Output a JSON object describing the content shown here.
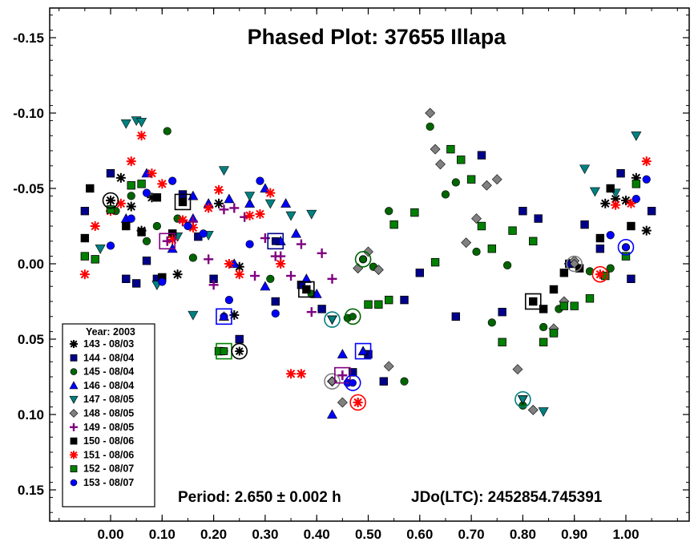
{
  "chart_data": {
    "type": "scatter",
    "title": "Phased Plot: 37655 Illapa",
    "xlabel": "",
    "ylabel": "",
    "xlim": [
      -0.12,
      1.12
    ],
    "ylim": [
      -0.17,
      0.17
    ],
    "y_inverted": true,
    "x_ticks": [
      "0.00",
      "0.10",
      "0.20",
      "0.30",
      "0.40",
      "0.50",
      "0.60",
      "0.70",
      "0.80",
      "0.90",
      "1.00"
    ],
    "x_tick_values": [
      0,
      0.1,
      0.2,
      0.3,
      0.4,
      0.5,
      0.6,
      0.7,
      0.8,
      0.9,
      1.0
    ],
    "y_ticks": [
      "-0.15",
      "-0.10",
      "-0.05",
      "0.00",
      "0.05",
      "0.10",
      "0.15"
    ],
    "y_tick_values": [
      -0.15,
      -0.1,
      -0.05,
      0.0,
      0.05,
      0.1,
      0.15
    ],
    "grid": false,
    "legend_position": "bottom-left",
    "legend_title": "Year: 2003",
    "footer_left": "Period: 2.650 ± 0.002 h",
    "footer_right": "JDo(LTC): 2452854.745391",
    "series": [
      {
        "name": "143 - 08/03",
        "marker": "asterisk",
        "color": "#000000",
        "x": [
          0.0,
          0.02,
          0.04,
          0.06,
          0.08,
          0.13,
          0.21,
          0.24,
          0.25,
          0.89,
          0.96,
          0.98,
          1.0,
          1.02,
          1.04
        ],
        "y": [
          -0.042,
          -0.057,
          -0.038,
          -0.022,
          -0.044,
          0.007,
          -0.04,
          0.034,
          0.002,
          0.0,
          -0.04,
          -0.043,
          -0.042,
          -0.057,
          -0.022
        ]
      },
      {
        "name": "144 - 08/04",
        "marker": "square",
        "color": "#00008B",
        "x": [
          -0.05,
          0.0,
          0.03,
          0.05,
          0.07,
          0.09,
          0.12,
          0.14,
          0.17,
          0.2,
          0.25,
          0.32,
          0.37,
          0.41,
          0.47,
          0.5,
          0.53,
          0.57,
          0.6,
          0.67,
          0.72,
          0.76,
          0.8,
          0.83,
          0.86,
          0.89,
          0.92,
          0.95,
          0.99,
          1.01,
          1.05
        ],
        "y": [
          -0.035,
          -0.06,
          0.01,
          0.013,
          -0.002,
          0.01,
          -0.02,
          -0.046,
          -0.018,
          0.01,
          0.05,
          0.025,
          0.014,
          0.03,
          0.072,
          0.06,
          0.078,
          0.024,
          0.006,
          0.035,
          -0.072,
          0.032,
          -0.035,
          -0.03,
          0.045,
          0.0,
          -0.026,
          -0.01,
          -0.06,
          0.01,
          -0.035
        ]
      },
      {
        "name": "145 - 08/04",
        "marker": "circle",
        "color": "#006400",
        "x": [
          0.01,
          0.04,
          0.07,
          0.09,
          0.11,
          0.13,
          0.16,
          0.22,
          0.31,
          0.39,
          0.46,
          0.49,
          0.51,
          0.54,
          0.57,
          0.62,
          0.65,
          0.67,
          0.71,
          0.74,
          0.77,
          0.8,
          0.84,
          0.87,
          0.93,
          0.97
        ],
        "y": [
          -0.035,
          -0.045,
          -0.015,
          -0.025,
          -0.088,
          -0.03,
          -0.004,
          0.058,
          0.01,
          0.02,
          0.036,
          -0.003,
          0.002,
          -0.035,
          0.078,
          -0.091,
          -0.046,
          -0.054,
          -0.008,
          0.039,
          0.001,
          0.094,
          0.042,
          0.03,
          0.005,
          0.003
        ]
      },
      {
        "name": "146 - 08/04",
        "marker": "triangle",
        "color": "#0000FF",
        "x": [
          0.03,
          0.07,
          0.12,
          0.16,
          0.19,
          0.22,
          0.24,
          0.27,
          0.3,
          0.34,
          0.38,
          0.4,
          0.43,
          0.45,
          0.49,
          0.16,
          0.23,
          0.3,
          0.33,
          0.36
        ],
        "y": [
          -0.03,
          -0.06,
          -0.01,
          -0.03,
          -0.04,
          0.035,
          0.0,
          -0.04,
          0.015,
          -0.04,
          0.01,
          0.02,
          0.1,
          0.06,
          0.058,
          -0.045,
          -0.043,
          -0.05,
          -0.015,
          -0.02
        ]
      },
      {
        "name": "147 - 08/05",
        "marker": "triangle-down",
        "color": "#008080",
        "x": [
          -0.02,
          0.03,
          0.05,
          0.06,
          0.09,
          0.13,
          0.16,
          0.19,
          0.22,
          0.27,
          0.31,
          0.35,
          0.39,
          0.43,
          0.8,
          0.84,
          0.92,
          0.94,
          0.98,
          1.02
        ],
        "y": [
          -0.01,
          -0.093,
          -0.095,
          -0.094,
          0.014,
          -0.018,
          0.034,
          -0.019,
          -0.062,
          -0.045,
          -0.04,
          -0.032,
          -0.033,
          0.037,
          0.09,
          0.098,
          -0.063,
          -0.048,
          -0.047,
          -0.085
        ]
      },
      {
        "name": "148 - 08/05",
        "marker": "diamond",
        "color": "#808080",
        "x": [
          0.43,
          0.45,
          0.48,
          0.5,
          0.52,
          0.54,
          0.62,
          0.64,
          0.69,
          0.71,
          0.73,
          0.75,
          0.79,
          0.82,
          0.86,
          0.88,
          0.9,
          0.63
        ],
        "y": [
          0.078,
          0.092,
          0.003,
          -0.008,
          0.004,
          0.068,
          -0.1,
          -0.066,
          -0.014,
          -0.03,
          -0.052,
          -0.056,
          0.07,
          0.097,
          0.043,
          0.025,
          -0.002,
          -0.076
        ]
      },
      {
        "name": "149 - 08/05",
        "marker": "plus",
        "color": "#800080",
        "x": [
          0.11,
          0.14,
          0.16,
          0.19,
          0.2,
          0.22,
          0.24,
          0.26,
          0.28,
          0.3,
          0.32,
          0.33,
          0.35,
          0.37,
          0.39,
          0.41,
          0.43,
          0.45
        ],
        "y": [
          -0.015,
          -0.028,
          -0.028,
          -0.003,
          0.014,
          -0.036,
          -0.037,
          -0.031,
          0.008,
          -0.017,
          -0.005,
          -0.005,
          0.008,
          -0.013,
          0.032,
          -0.007,
          0.01,
          0.074
        ]
      },
      {
        "name": "150 - 08/06",
        "marker": "square",
        "color": "#000000",
        "x": [
          -0.05,
          -0.04,
          0.03,
          0.06,
          0.09,
          0.1,
          0.12,
          0.14,
          0.38,
          0.82,
          0.84,
          0.86,
          0.88,
          0.91,
          0.95,
          0.97,
          1.01
        ],
        "y": [
          -0.017,
          -0.05,
          -0.025,
          -0.021,
          -0.044,
          0.009,
          -0.02,
          -0.041,
          0.017,
          0.025,
          0.03,
          0.017,
          0.006,
          0.003,
          -0.017,
          -0.05,
          -0.025
        ]
      },
      {
        "name": "151 - 08/06",
        "marker": "asterisk",
        "color": "#FF0000",
        "x": [
          -0.05,
          -0.03,
          0.0,
          0.02,
          0.04,
          0.06,
          0.08,
          0.1,
          0.12,
          0.14,
          0.16,
          0.19,
          0.21,
          0.23,
          0.25,
          0.27,
          0.29,
          0.31,
          0.33,
          0.35,
          0.37,
          0.48,
          0.95,
          0.98,
          1.01,
          1.04
        ],
        "y": [
          0.007,
          -0.025,
          -0.035,
          -0.04,
          -0.068,
          -0.085,
          -0.06,
          -0.053,
          -0.016,
          -0.029,
          -0.024,
          -0.037,
          -0.049,
          0.0,
          0.007,
          -0.032,
          -0.033,
          -0.047,
          0.0,
          0.073,
          0.073,
          0.092,
          0.007,
          -0.039,
          -0.04,
          -0.068
        ]
      },
      {
        "name": "152 - 08/07",
        "marker": "square",
        "color": "#008000",
        "x": [
          -0.05,
          -0.03,
          0.0,
          0.04,
          0.06,
          0.21,
          0.5,
          0.52,
          0.54,
          0.55,
          0.59,
          0.63,
          0.66,
          0.68,
          0.7,
          0.72,
          0.74,
          0.76,
          0.78,
          0.82,
          0.84,
          0.86,
          0.88,
          0.9,
          0.93,
          0.96,
          1.0,
          1.02
        ],
        "y": [
          -0.005,
          -0.003,
          -0.036,
          -0.052,
          -0.053,
          0.058,
          0.027,
          0.027,
          0.024,
          -0.026,
          -0.034,
          -0.001,
          -0.076,
          -0.069,
          -0.056,
          -0.025,
          -0.01,
          0.052,
          -0.022,
          -0.015,
          0.052,
          0.046,
          0.028,
          0.028,
          0.023,
          0.008,
          -0.005,
          -0.053
        ]
      },
      {
        "name": "153 - 08/07",
        "marker": "circle",
        "color": "#0000FF",
        "x": [
          0.0,
          0.04,
          0.07,
          0.1,
          0.12,
          0.15,
          0.18,
          0.22,
          0.23,
          0.27,
          0.29,
          0.32,
          0.46,
          0.97,
          1.0,
          1.02,
          1.04
        ],
        "y": [
          -0.012,
          -0.03,
          -0.047,
          0.012,
          -0.055,
          -0.025,
          -0.02,
          0.035,
          0.024,
          -0.013,
          -0.055,
          0.033,
          0.079,
          -0.019,
          -0.011,
          -0.043,
          -0.056
        ]
      }
    ],
    "highlighted_points": [
      {
        "series": "143 - 08/03",
        "x": 0.0,
        "y": -0.042
      },
      {
        "series": "150 - 08/06",
        "x": 0.14,
        "y": -0.041
      },
      {
        "series": "149 - 08/05",
        "x": 0.11,
        "y": -0.015
      },
      {
        "series": "146 - 08/04",
        "x": 0.22,
        "y": 0.035
      },
      {
        "series": "152 - 08/07",
        "x": 0.22,
        "y": 0.058
      },
      {
        "series": "143 - 08/03",
        "x": 0.25,
        "y": 0.058
      },
      {
        "series": "144 - 08/04",
        "x": 0.32,
        "y": -0.015
      },
      {
        "series": "150 - 08/06",
        "x": 0.38,
        "y": 0.017
      },
      {
        "series": "147 - 08/05",
        "x": 0.43,
        "y": 0.037
      },
      {
        "series": "145 - 08/04",
        "x": 0.47,
        "y": 0.035
      },
      {
        "series": "145 - 08/04",
        "x": 0.49,
        "y": -0.003
      },
      {
        "series": "146 - 08/04",
        "x": 0.49,
        "y": 0.058
      },
      {
        "series": "148 - 08/05",
        "x": 0.43,
        "y": 0.078
      },
      {
        "series": "149 - 08/05",
        "x": 0.45,
        "y": 0.074
      },
      {
        "series": "153 - 08/07",
        "x": 0.47,
        "y": 0.079
      },
      {
        "series": "151 - 08/06",
        "x": 0.48,
        "y": 0.092
      },
      {
        "series": "147 - 08/05",
        "x": 0.8,
        "y": 0.09
      },
      {
        "series": "150 - 08/06",
        "x": 0.82,
        "y": 0.025
      },
      {
        "series": "148 - 08/05",
        "x": 0.9,
        "y": 0.0
      },
      {
        "series": "151 - 08/06",
        "x": 0.95,
        "y": 0.007
      },
      {
        "series": "153 - 08/07",
        "x": 1.0,
        "y": -0.011
      }
    ]
  }
}
